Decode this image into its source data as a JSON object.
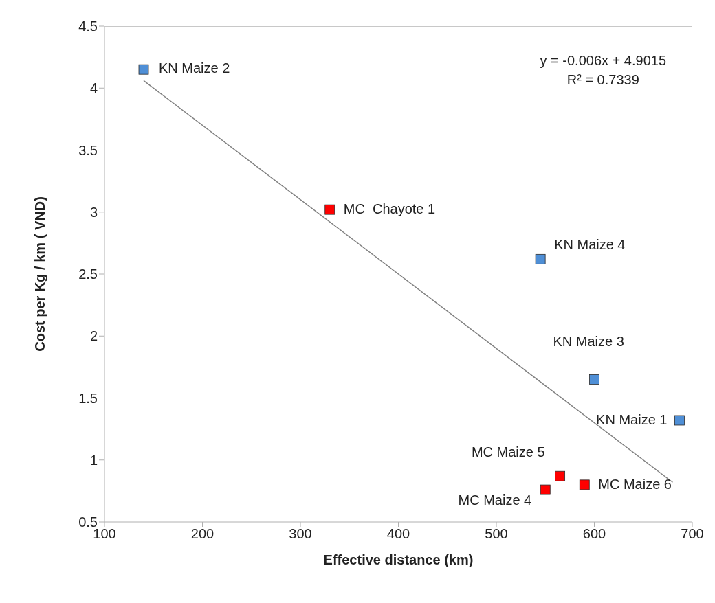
{
  "chart_data": {
    "type": "scatter",
    "xlabel": "Effective distance (km)",
    "ylabel": "Cost per  Kg / km ( VND)",
    "xlim": [
      100,
      700
    ],
    "xticks": [
      100,
      200,
      300,
      400,
      500,
      600,
      700
    ],
    "ylim": [
      0.5,
      4.5
    ],
    "yticks": [
      0.5,
      1,
      1.5,
      2,
      2.5,
      3,
      3.5,
      4,
      4.5
    ],
    "grid": false,
    "legend": false,
    "marker": "square",
    "series": [
      {
        "color": "#4f8fd6",
        "x": [
          140,
          545,
          600,
          687
        ],
        "values": [
          4.15,
          2.62,
          1.65,
          1.32
        ]
      },
      {
        "color": "#ff0000",
        "x": [
          330,
          565,
          550,
          590
        ],
        "values": [
          3.02,
          0.87,
          0.76,
          0.8
        ]
      },
      {
        "type": "line",
        "color": "#808080",
        "marker": "none",
        "x": [
          140,
          680
        ],
        "values": [
          4.06,
          0.82
        ]
      }
    ],
    "annotations": [
      {
        "text": "KN Maize 2",
        "x": 140,
        "y": 4.15
      },
      {
        "text": "MC  Chayote 1",
        "x": 330,
        "y": 3.02
      },
      {
        "text": "KN Maize 4",
        "x": 545,
        "y": 2.62
      },
      {
        "text": "KN Maize 3",
        "x": 600,
        "y": 1.65
      },
      {
        "text": "KN Maize 1",
        "x": 687,
        "y": 1.32
      },
      {
        "text": "MC Maize 5",
        "x": 565,
        "y": 0.87
      },
      {
        "text": "MC Maize 4",
        "x": 550,
        "y": 0.76
      },
      {
        "text": "MC Maize 6",
        "x": 590,
        "y": 0.8
      },
      "y = -0.006x + 4.9015",
      "R² = 0.7339"
    ]
  }
}
